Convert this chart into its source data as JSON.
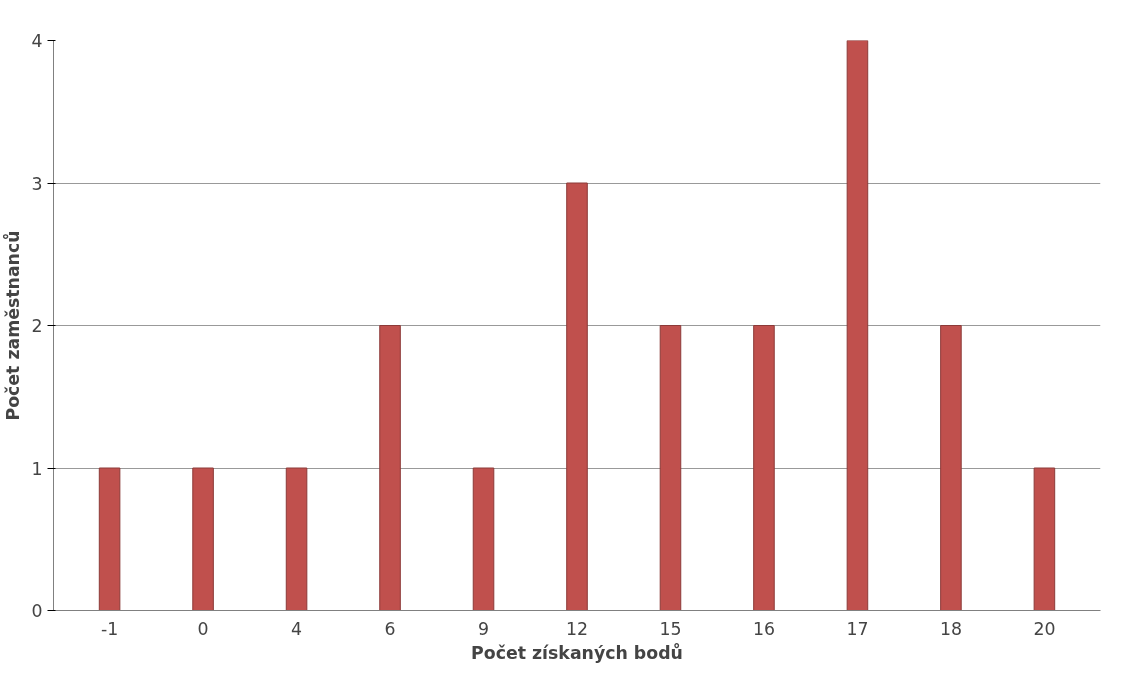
{
  "chart_data": {
    "type": "bar",
    "xlabel": "Počet získaných bodů",
    "ylabel": "Počet zaměstnanců",
    "categories": [
      "-1",
      "0",
      "4",
      "6",
      "9",
      "12",
      "15",
      "16",
      "17",
      "18",
      "20"
    ],
    "values": [
      1,
      1,
      1,
      2,
      1,
      3,
      2,
      2,
      4,
      2,
      1
    ],
    "color": "#c0504d",
    "ylim": [
      0,
      4
    ],
    "yticks": [
      0,
      1,
      2,
      3,
      4
    ],
    "grid": "y"
  }
}
